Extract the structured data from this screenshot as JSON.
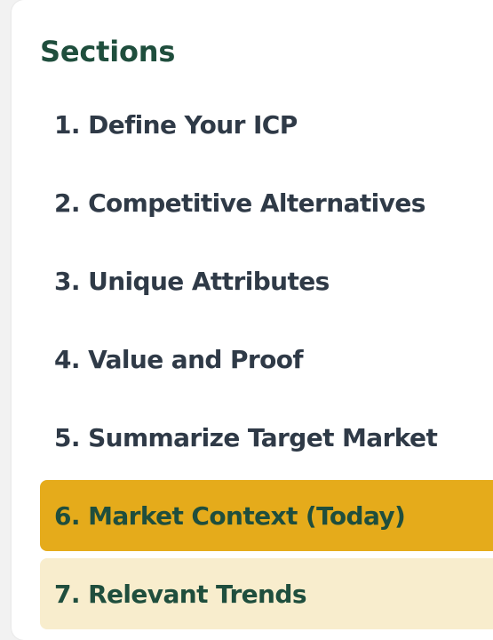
{
  "sidebar": {
    "title": "Sections",
    "items": [
      {
        "label": "1. Define Your ICP"
      },
      {
        "label": "2. Competitive Alternatives"
      },
      {
        "label": "3. Unique Attributes"
      },
      {
        "label": "4. Value and Proof"
      },
      {
        "label": "5. Summarize Target Market"
      },
      {
        "label": "6. Market Context (Today)"
      },
      {
        "label": "7. Relevant Trends"
      }
    ],
    "active_index": 6
  },
  "colors": {
    "heading": "#1f4e3d",
    "item_text": "#2f3a47",
    "active_bg": "#e5ab1b",
    "next_bg": "#f8edcd"
  }
}
